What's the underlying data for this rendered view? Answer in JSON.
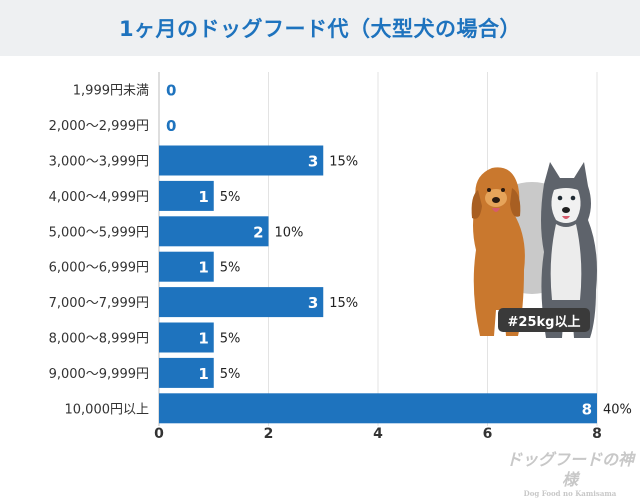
{
  "title": "1ヶ月のドッグフード代（大型犬の場合）",
  "badge": "#25kg以上",
  "watermark": {
    "name": "ドッグフードの神様",
    "sub": "Dog Food no Kamisama"
  },
  "colors": {
    "bar": "#1e73be",
    "title": "#1e73be",
    "zero_label": "#1e73be",
    "grid": "#e3e3e3",
    "axis_text": "#333333"
  },
  "chart_data": {
    "type": "bar",
    "orientation": "horizontal",
    "title": "1ヶ月のドッグフード代（大型犬の場合）",
    "categories": [
      "1,999円未満",
      "2,000〜2,999円",
      "3,000〜3,999円",
      "4,000〜4,999円",
      "5,000〜5,999円",
      "6,000〜6,999円",
      "7,000〜7,999円",
      "8,000〜8,999円",
      "9,000〜9,999円",
      "10,000円以上"
    ],
    "values": [
      0,
      0,
      3,
      1,
      2,
      1,
      3,
      1,
      1,
      8
    ],
    "percent_labels": [
      "",
      "",
      "15%",
      "5%",
      "10%",
      "5%",
      "15%",
      "5%",
      "5%",
      "40%"
    ],
    "xlim": [
      0,
      8
    ],
    "xticks": [
      0,
      2,
      4,
      6,
      8
    ],
    "grid": true
  }
}
